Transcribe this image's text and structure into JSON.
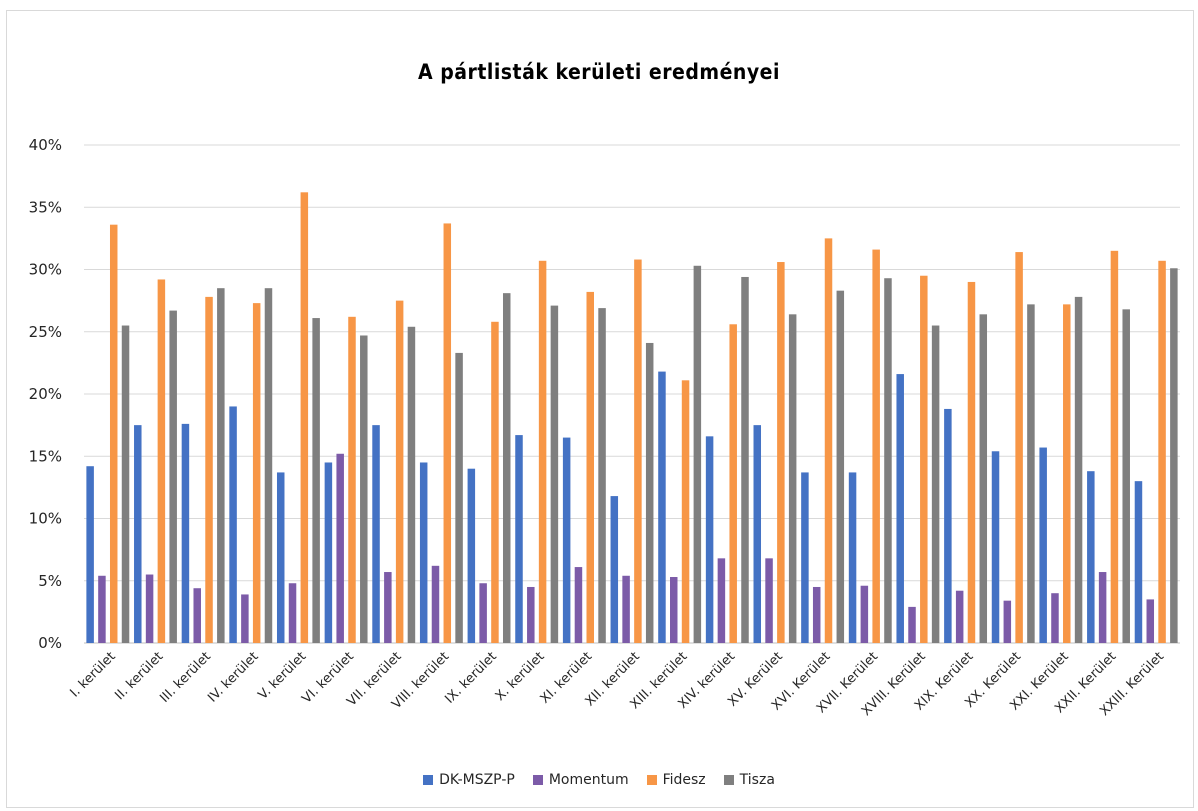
{
  "chart_data": {
    "type": "bar",
    "title": "A pártlisták kerületi eredményei",
    "xlabel": "",
    "ylabel": "",
    "ylim": [
      0,
      0.4
    ],
    "yticks": [
      0,
      0.05,
      0.1,
      0.15,
      0.2,
      0.25,
      0.3,
      0.35,
      0.4
    ],
    "ytick_labels": [
      "0%",
      "5%",
      "10%",
      "15%",
      "20%",
      "25%",
      "30%",
      "35%",
      "40%"
    ],
    "grid": "horizontal",
    "legend_position": "bottom",
    "categories": [
      "I. kerület",
      "II. kerület",
      "III. kerület",
      "IV. kerület",
      "V. kerület",
      "VI. kerület",
      "VII. kerület",
      "VIII. kerület",
      "IX. kerület",
      "X. kerület",
      "XI. kerület",
      "XII. kerület",
      "XIII. kerület",
      "XIV. kerület",
      "XV. Kerület",
      "XVI. Kerület",
      "XVII. Kerület",
      "XVIII. Kerület",
      "XIX. Kerület",
      "XX. Kerület",
      "XXI. Kerület",
      "XXII. Kerület",
      "XXIII. Kerület"
    ],
    "series": [
      {
        "name": "DK-MSZP-P",
        "color": "#4472c4",
        "values": [
          0.142,
          0.175,
          0.176,
          0.19,
          0.137,
          0.145,
          0.175,
          0.145,
          0.14,
          0.167,
          0.165,
          0.118,
          0.218,
          0.166,
          0.175,
          0.137,
          0.137,
          0.216,
          0.188,
          0.154,
          0.157,
          0.138,
          0.13
        ]
      },
      {
        "name": "Momentum",
        "color": "#7c5ba8",
        "values": [
          0.054,
          0.055,
          0.044,
          0.039,
          0.048,
          0.152,
          0.057,
          0.062,
          0.048,
          0.045,
          0.061,
          0.054,
          0.053,
          0.068,
          0.068,
          0.045,
          0.046,
          0.029,
          0.042,
          0.034,
          0.04,
          0.057,
          0.035
        ]
      },
      {
        "name": "Fidesz",
        "color": "#f79646",
        "values": [
          0.336,
          0.292,
          0.278,
          0.273,
          0.362,
          0.262,
          0.275,
          0.337,
          0.258,
          0.307,
          0.282,
          0.308,
          0.211,
          0.256,
          0.306,
          0.325,
          0.316,
          0.295,
          0.29,
          0.314,
          0.272,
          0.315,
          0.307
        ]
      },
      {
        "name": "Tisza",
        "color": "#7f7f7f",
        "values": [
          0.255,
          0.267,
          0.285,
          0.285,
          0.261,
          0.247,
          0.254,
          0.233,
          0.281,
          0.271,
          0.269,
          0.241,
          0.303,
          0.294,
          0.264,
          0.283,
          0.293,
          0.255,
          0.264,
          0.272,
          0.278,
          0.268,
          0.301
        ]
      }
    ]
  }
}
